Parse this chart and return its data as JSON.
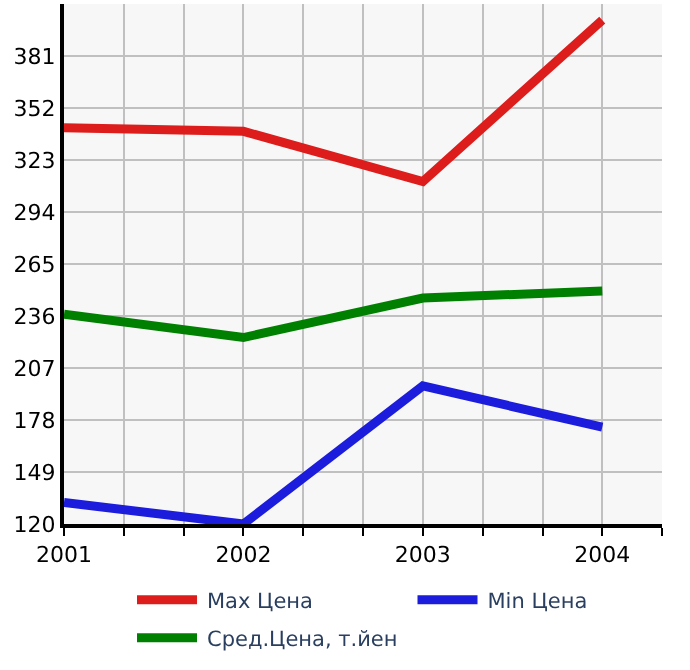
{
  "chart_data": {
    "type": "line",
    "x": [
      2001,
      2002,
      2003,
      2004
    ],
    "xlim": [
      2001,
      2004.333
    ],
    "xticks": [
      2001,
      {
        "value": 2001.333,
        "label": null
      },
      {
        "value": 2001.667,
        "label": null
      },
      2002,
      {
        "value": 2002.333,
        "label": null
      },
      {
        "value": 2002.667,
        "label": null
      },
      2003,
      {
        "value": 2003.333,
        "label": null
      },
      {
        "value": 2003.667,
        "label": null
      },
      2004,
      {
        "value": 2004.333,
        "label": null
      }
    ],
    "ylim": [
      120,
      410
    ],
    "yticks": [
      120,
      149,
      178,
      207,
      236,
      265,
      294,
      323,
      352,
      381
    ],
    "grid": true,
    "legend": "bottom",
    "marker": "none",
    "line_style": "solid",
    "series": [
      {
        "name": "Max Цена",
        "color": "#dd1c1c",
        "values": [
          341,
          339,
          311,
          401
        ]
      },
      {
        "name": "Min Цена",
        "color": "#1c1cdd",
        "values": [
          132,
          120,
          197,
          174
        ]
      },
      {
        "name": "Сред.Цена, т.йен",
        "color": "#008000",
        "values": [
          237,
          224,
          246,
          250
        ]
      }
    ]
  }
}
